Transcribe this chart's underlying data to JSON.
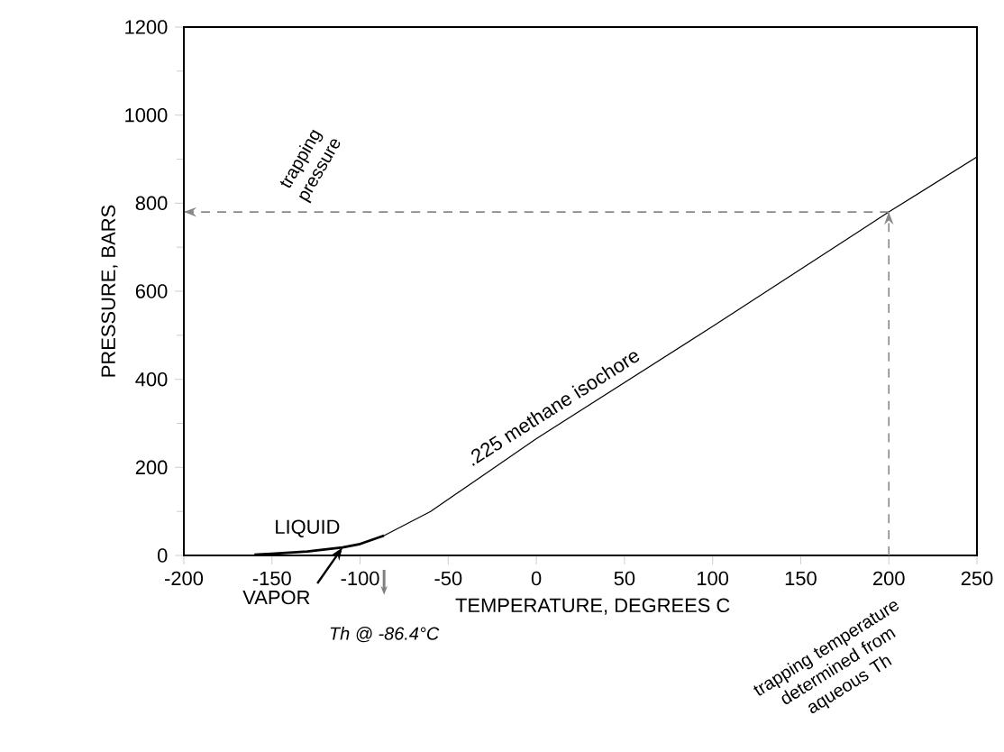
{
  "chart_data": {
    "type": "line",
    "xlabel": "TEMPERATURE, DEGREES C",
    "ylabel": "PRESSURE, BARS",
    "xlim": [
      -200,
      250
    ],
    "ylim": [
      0,
      1200
    ],
    "xticks": [
      -200,
      -150,
      -100,
      -50,
      0,
      50,
      100,
      150,
      200,
      250
    ],
    "yticks": [
      0,
      200,
      400,
      600,
      800,
      1000,
      1200
    ],
    "series": [
      {
        "color": "#000000",
        "x": [
          -160,
          -150,
          -130,
          -110,
          -100,
          -86.4
        ],
        "values": [
          2,
          4,
          9,
          18,
          26,
          45
        ]
      },
      {
        "name": ".225 methane isochore",
        "color": "#000000",
        "x": [
          -86.4,
          -60,
          0,
          100,
          200,
          250
        ],
        "values": [
          45,
          100,
          265,
          520,
          780,
          905
        ]
      }
    ],
    "ref_lines": [
      {
        "axis": "y",
        "value": 780,
        "label": "trapping pressure",
        "color": "#888888",
        "line_style": "dashed"
      },
      {
        "axis": "x",
        "value": 200,
        "label": "trapping temperature determined from aqueous Th",
        "color": "#888888",
        "line_style": "dashed"
      }
    ],
    "annotations": [
      "LIQUID",
      "VAPOR",
      "Th @ -86.4°C"
    ],
    "line_style": "solid",
    "marker": "none"
  }
}
